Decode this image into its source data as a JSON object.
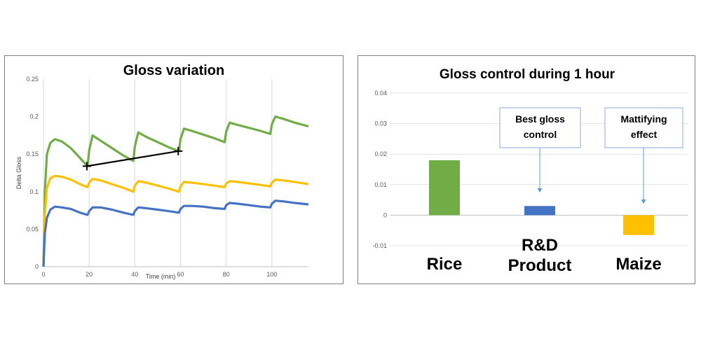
{
  "chart_data": [
    {
      "type": "line",
      "title": "Gloss variation",
      "xlabel": "Time (min)",
      "ylabel": "Delta Gloss",
      "xlim": [
        0,
        116
      ],
      "ylim": [
        0,
        0.25
      ],
      "x_ticks": [
        "0",
        "20",
        "40",
        "60",
        "80",
        "100"
      ],
      "y_ticks": [
        "0",
        "0.05",
        "0.1",
        "0.15",
        "0.2",
        "0.25"
      ],
      "grid": "vertical",
      "colors": {
        "green": "#70ad47",
        "yellow": "#ffc000",
        "blue": "#4472c4",
        "trend": "#000000"
      },
      "series": [
        {
          "color": "green",
          "points": [
            [
              0,
              0
            ],
            [
              0.6,
              0.1
            ],
            [
              1.5,
              0.15
            ],
            [
              3,
              0.165
            ],
            [
              5,
              0.17
            ],
            [
              8,
              0.167
            ],
            [
              12,
              0.158
            ],
            [
              16,
              0.145
            ],
            [
              19.3,
              0.134
            ],
            [
              20,
              0.155
            ],
            [
              21.5,
              0.175
            ],
            [
              25,
              0.168
            ],
            [
              30,
              0.158
            ],
            [
              35,
              0.148
            ],
            [
              39.3,
              0.141
            ],
            [
              40,
              0.16
            ],
            [
              41.5,
              0.179
            ],
            [
              45,
              0.173
            ],
            [
              50,
              0.166
            ],
            [
              55,
              0.159
            ],
            [
              59.3,
              0.154
            ],
            [
              60,
              0.17
            ],
            [
              61.5,
              0.184
            ],
            [
              65,
              0.181
            ],
            [
              70,
              0.176
            ],
            [
              75,
              0.171
            ],
            [
              79.3,
              0.166
            ],
            [
              80,
              0.18
            ],
            [
              81.5,
              0.192
            ],
            [
              85,
              0.189
            ],
            [
              90,
              0.185
            ],
            [
              95,
              0.181
            ],
            [
              99.3,
              0.177
            ],
            [
              100,
              0.19
            ],
            [
              101.5,
              0.2
            ],
            [
              105,
              0.197
            ],
            [
              110,
              0.192
            ],
            [
              116,
              0.187
            ]
          ]
        },
        {
          "color": "yellow",
          "points": [
            [
              0,
              0
            ],
            [
              0.6,
              0.07
            ],
            [
              1.5,
              0.105
            ],
            [
              3,
              0.118
            ],
            [
              5,
              0.121
            ],
            [
              8,
              0.12
            ],
            [
              12,
              0.116
            ],
            [
              16,
              0.11
            ],
            [
              19.3,
              0.106
            ],
            [
              20,
              0.112
            ],
            [
              21.5,
              0.117
            ],
            [
              25,
              0.115
            ],
            [
              30,
              0.11
            ],
            [
              35,
              0.105
            ],
            [
              39.3,
              0.1
            ],
            [
              40,
              0.108
            ],
            [
              41.5,
              0.114
            ],
            [
              45,
              0.112
            ],
            [
              50,
              0.108
            ],
            [
              55,
              0.104
            ],
            [
              59.3,
              0.1
            ],
            [
              60,
              0.107
            ],
            [
              61.5,
              0.113
            ],
            [
              65,
              0.112
            ],
            [
              70,
              0.11
            ],
            [
              75,
              0.108
            ],
            [
              79.3,
              0.106
            ],
            [
              80,
              0.111
            ],
            [
              81.5,
              0.114
            ],
            [
              85,
              0.113
            ],
            [
              90,
              0.111
            ],
            [
              95,
              0.109
            ],
            [
              99.3,
              0.107
            ],
            [
              100,
              0.112
            ],
            [
              101.5,
              0.116
            ],
            [
              105,
              0.115
            ],
            [
              110,
              0.113
            ],
            [
              116,
              0.11
            ]
          ]
        },
        {
          "color": "blue",
          "points": [
            [
              0,
              0
            ],
            [
              0.6,
              0.045
            ],
            [
              1.5,
              0.065
            ],
            [
              3,
              0.076
            ],
            [
              5,
              0.08
            ],
            [
              8,
              0.079
            ],
            [
              12,
              0.077
            ],
            [
              16,
              0.072
            ],
            [
              19.3,
              0.069
            ],
            [
              20,
              0.074
            ],
            [
              21.5,
              0.079
            ],
            [
              25,
              0.079
            ],
            [
              30,
              0.076
            ],
            [
              35,
              0.072
            ],
            [
              39.3,
              0.069
            ],
            [
              40,
              0.074
            ],
            [
              41.5,
              0.079
            ],
            [
              45,
              0.078
            ],
            [
              50,
              0.076
            ],
            [
              55,
              0.074
            ],
            [
              59.3,
              0.072
            ],
            [
              60,
              0.077
            ],
            [
              61.5,
              0.081
            ],
            [
              65,
              0.081
            ],
            [
              70,
              0.08
            ],
            [
              75,
              0.078
            ],
            [
              79.3,
              0.077
            ],
            [
              80,
              0.082
            ],
            [
              81.5,
              0.085
            ],
            [
              85,
              0.084
            ],
            [
              90,
              0.082
            ],
            [
              95,
              0.08
            ],
            [
              99.3,
              0.079
            ],
            [
              100,
              0.084
            ],
            [
              101.5,
              0.088
            ],
            [
              105,
              0.087
            ],
            [
              110,
              0.085
            ],
            [
              116,
              0.083
            ]
          ]
        }
      ],
      "trendline": {
        "points": [
          [
            19,
            0.134
          ],
          [
            59,
            0.154
          ]
        ],
        "markers": "plus"
      }
    },
    {
      "type": "bar",
      "title": "Gloss control during 1 hour",
      "ylim": [
        -0.01,
        0.04
      ],
      "y_ticks": [
        "0.04",
        "0.03",
        "0.02",
        "0.01",
        "0",
        "-0.01"
      ],
      "grid": "horizontal",
      "categories": [
        "Rice",
        "R&D Product",
        "Maize"
      ],
      "category_lines": [
        [
          "Rice"
        ],
        [
          "R&D",
          "Product"
        ],
        [
          "Maize"
        ]
      ],
      "values": [
        0.018,
        0.003,
        -0.0065
      ],
      "colors": [
        "#70ad47",
        "#4472c4",
        "#ffc000"
      ],
      "annotations": [
        {
          "lines": [
            "Best gloss",
            "control"
          ],
          "target": "R&D Product"
        },
        {
          "lines": [
            "Mattifying",
            "effect"
          ],
          "target": "Maize"
        }
      ]
    }
  ]
}
